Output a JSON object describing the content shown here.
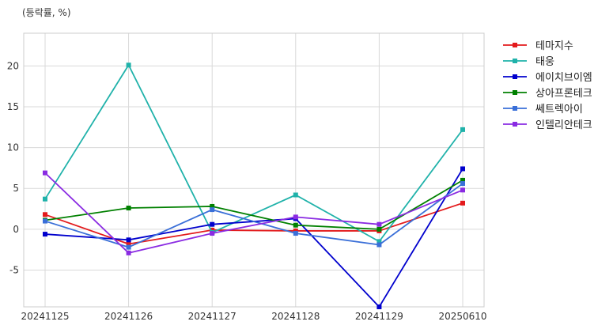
{
  "chart_data": {
    "type": "line",
    "unit_label": "(등락률, %)",
    "title": "",
    "xlabel": "",
    "ylabel": "",
    "categories": [
      "20241125",
      "20241126",
      "20241127",
      "20241128",
      "20241129",
      "20250610"
    ],
    "yticks": [
      -5,
      0,
      5,
      10,
      15,
      20
    ],
    "ylim": [
      -9.5,
      24
    ],
    "grid": true,
    "legend_position": "outside-right",
    "series": [
      {
        "name": "테마지수",
        "color": "#e31a1c",
        "values": [
          1.8,
          -1.8,
          -0.1,
          -0.2,
          -0.2,
          3.2
        ]
      },
      {
        "name": "태웅",
        "color": "#20b2aa",
        "values": [
          3.7,
          20.1,
          -0.4,
          4.2,
          -1.5,
          12.2
        ]
      },
      {
        "name": "에이치브이엠",
        "color": "#0000cd",
        "values": [
          -0.6,
          -1.3,
          0.6,
          1.3,
          -9.5,
          7.4
        ]
      },
      {
        "name": "상아프론테크",
        "color": "#008000",
        "values": [
          1.1,
          2.6,
          2.8,
          0.5,
          0.0,
          6.0
        ]
      },
      {
        "name": "쎄트렉아이",
        "color": "#3a6fd8",
        "values": [
          1.0,
          -2.2,
          2.4,
          -0.5,
          -1.9,
          5.6
        ]
      },
      {
        "name": "인텔리안테크",
        "color": "#8a2be2",
        "values": [
          6.9,
          -2.9,
          -0.5,
          1.5,
          0.6,
          4.8
        ]
      }
    ]
  }
}
